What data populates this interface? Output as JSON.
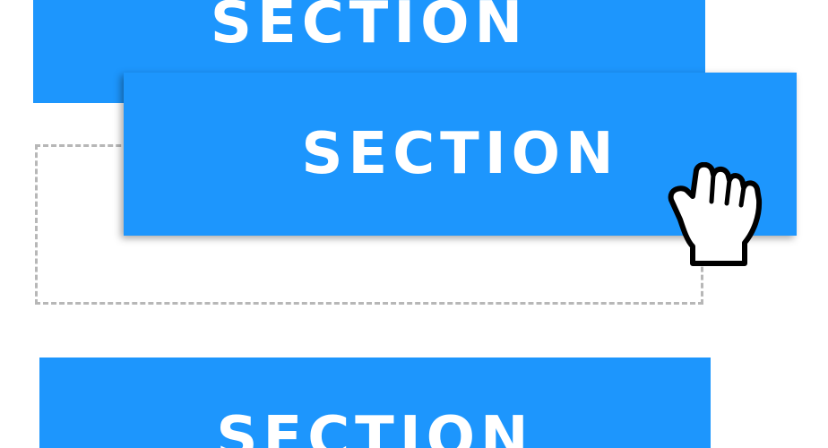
{
  "blocks": {
    "top": {
      "label": "SECTION"
    },
    "dragged": {
      "label": "SECTION"
    },
    "bottom": {
      "label": "SECTION"
    }
  },
  "colors": {
    "section_blue": "#1d96fd",
    "placeholder_border": "#b7b7b7",
    "text": "#ffffff"
  },
  "cursor": {
    "icon": "grab-hand-icon"
  }
}
